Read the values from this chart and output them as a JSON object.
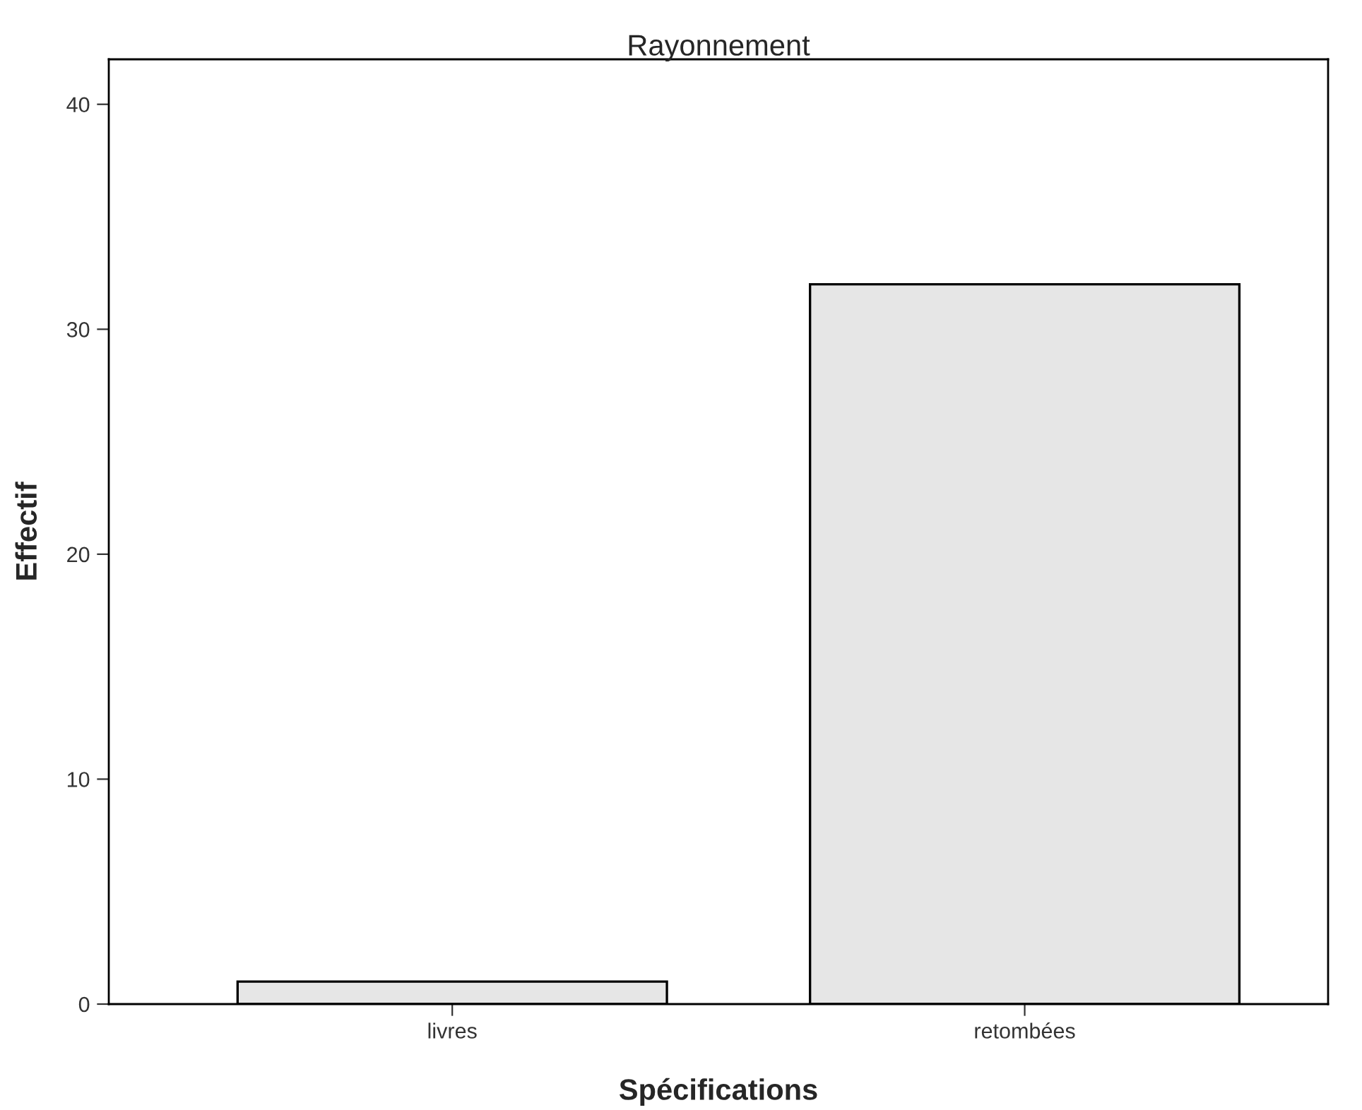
{
  "chart_data": {
    "type": "bar",
    "title": "Rayonnement",
    "xlabel": "Spécifications",
    "ylabel": "Effectif",
    "categories": [
      "livres",
      "retombées"
    ],
    "values": [
      1,
      32
    ],
    "color": "#e6e6e6",
    "ylim": [
      0,
      42
    ],
    "yticks": [
      0,
      10,
      20,
      30,
      40
    ],
    "grid": false,
    "legend": false
  }
}
